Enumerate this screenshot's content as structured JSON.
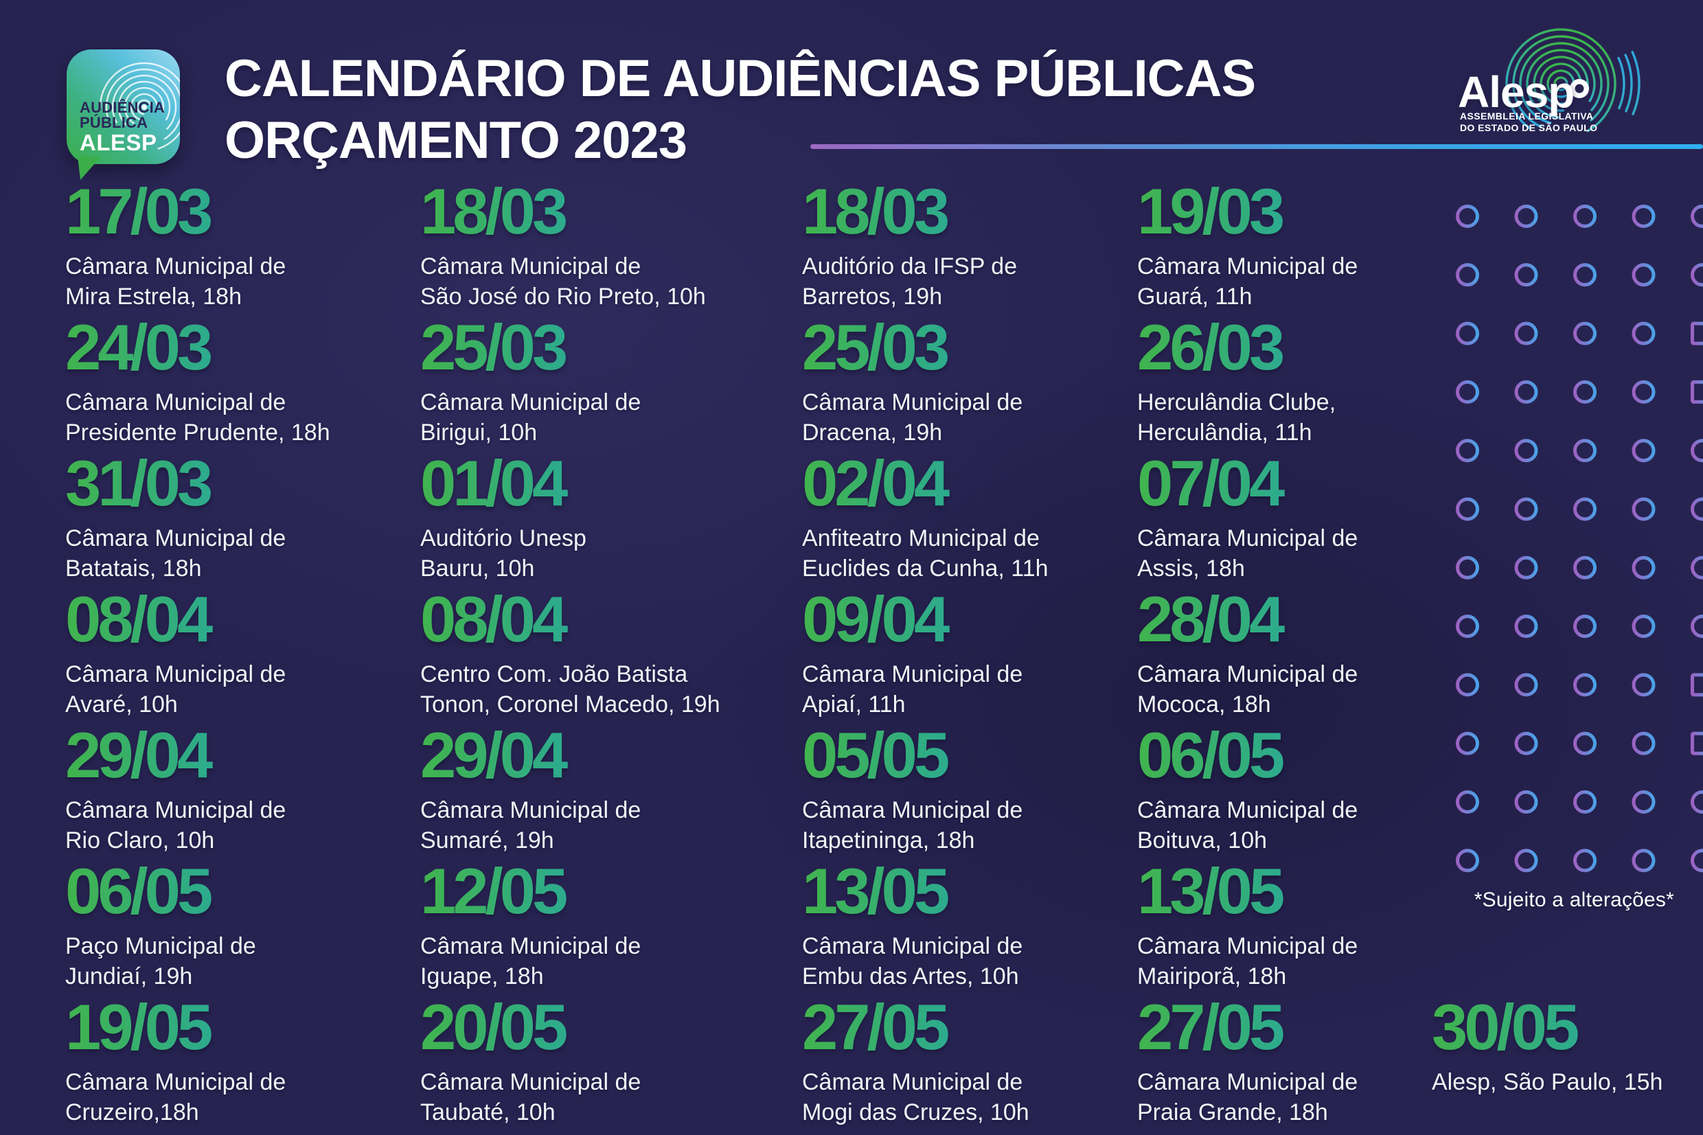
{
  "page": {
    "title_line1": "CALENDÁRIO DE AUDIÊNCIAS PÚBLICAS",
    "title_line2": "ORÇAMENTO 2023",
    "note": "*Sujeito a alterações*",
    "background_color": "#272351"
  },
  "badge": {
    "line1": "AUDIÊNCIA",
    "line2": "PÚBLICA",
    "line3": "ALESP"
  },
  "alesp_logo": {
    "wordmark": "Alesp",
    "subtitle_line1": "ASSEMBLEIA LEGISLATIVA",
    "subtitle_line2": "DO ESTADO DE SÃO PAULO"
  },
  "colors": {
    "date_gradient": [
      "#41b44d",
      "#2dab8e",
      "#31a7dc"
    ],
    "accent_line_gradient": [
      "#9d69c4",
      "#2fb0f0"
    ],
    "ring_gradient": [
      "#9c62c2",
      "#4aa2e8"
    ],
    "badge_gradient": [
      "#9bd8f0",
      "#3bae4a"
    ],
    "text": "#f3f3f7"
  },
  "events": [
    {
      "date": "17/03",
      "venue_lines": [
        "Câmara Municipal de",
        "Mira Estrela, 18h"
      ]
    },
    {
      "date": "18/03",
      "venue_lines": [
        "Câmara Municipal de",
        "São José do Rio Preto, 10h"
      ]
    },
    {
      "date": "18/03",
      "venue_lines": [
        "Auditório da IFSP de",
        "Barretos, 19h"
      ]
    },
    {
      "date": "19/03",
      "venue_lines": [
        "Câmara Municipal de",
        "Guará, 11h"
      ]
    },
    {
      "date": "24/03",
      "venue_lines": [
        "Câmara Municipal de",
        "Presidente Prudente, 18h"
      ]
    },
    {
      "date": "25/03",
      "venue_lines": [
        "Câmara Municipal de",
        "Birigui, 10h"
      ]
    },
    {
      "date": "25/03",
      "venue_lines": [
        "Câmara Municipal de",
        "Dracena, 19h"
      ]
    },
    {
      "date": "26/03",
      "venue_lines": [
        "Herculândia Clube,",
        "Herculândia, 11h"
      ]
    },
    {
      "date": "31/03",
      "venue_lines": [
        "Câmara Municipal de",
        "Batatais, 18h"
      ]
    },
    {
      "date": "01/04",
      "venue_lines": [
        "Auditório Unesp",
        "Bauru, 10h"
      ]
    },
    {
      "date": "02/04",
      "venue_lines": [
        "Anfiteatro Municipal de",
        "Euclides da Cunha, 11h"
      ]
    },
    {
      "date": "07/04",
      "venue_lines": [
        "Câmara Municipal de",
        "Assis, 18h"
      ]
    },
    {
      "date": "08/04",
      "venue_lines": [
        "Câmara Municipal de",
        "Avaré, 10h"
      ]
    },
    {
      "date": "08/04",
      "venue_lines": [
        "Centro Com. João Batista",
        "Tonon, Coronel Macedo, 19h"
      ]
    },
    {
      "date": "09/04",
      "venue_lines": [
        "Câmara Municipal de",
        "Apiaí, 11h"
      ]
    },
    {
      "date": "28/04",
      "venue_lines": [
        "Câmara Municipal de",
        "Mococa, 18h"
      ]
    },
    {
      "date": "29/04",
      "venue_lines": [
        "Câmara Municipal de",
        "Rio Claro, 10h"
      ]
    },
    {
      "date": "29/04",
      "venue_lines": [
        "Câmara Municipal de",
        "Sumaré, 19h"
      ]
    },
    {
      "date": "05/05",
      "venue_lines": [
        "Câmara Municipal de",
        "Itapetininga, 18h"
      ]
    },
    {
      "date": "06/05",
      "venue_lines": [
        "Câmara Municipal de",
        "Boituva, 10h"
      ]
    },
    {
      "date": "06/05",
      "venue_lines": [
        "Paço Municipal de",
        "Jundiaí, 19h"
      ]
    },
    {
      "date": "12/05",
      "venue_lines": [
        "Câmara Municipal de",
        "Iguape, 18h"
      ]
    },
    {
      "date": "13/05",
      "venue_lines": [
        "Câmara Municipal de",
        "Embu das Artes, 10h"
      ]
    },
    {
      "date": "13/05",
      "venue_lines": [
        "Câmara Municipal de",
        "Mairiporã, 18h"
      ]
    },
    {
      "date": "19/05",
      "venue_lines": [
        "Câmara Municipal de",
        "Cruzeiro,18h"
      ]
    },
    {
      "date": "20/05",
      "venue_lines": [
        "Câmara Municipal de",
        "Taubaté, 10h"
      ]
    },
    {
      "date": "27/05",
      "venue_lines": [
        "Câmara Municipal de",
        "Mogi das Cruzes, 10h"
      ]
    },
    {
      "date": "27/05",
      "venue_lines": [
        "Câmara Municipal de",
        "Praia Grande, 18h"
      ]
    }
  ],
  "final_event": {
    "date": "30/05",
    "venue_lines": [
      "Alesp, São Paulo, 15h"
    ]
  },
  "decor": {
    "ring_rows": 12,
    "ring_cols": 5,
    "square_cells": [
      [
        2,
        4
      ],
      [
        3,
        4
      ],
      [
        8,
        4
      ],
      [
        9,
        4
      ]
    ]
  }
}
